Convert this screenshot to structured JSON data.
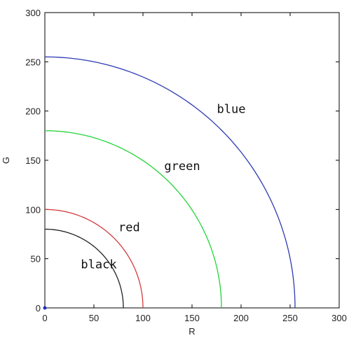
{
  "chart_data": {
    "type": "line",
    "title": "",
    "xlabel": "R",
    "ylabel": "G",
    "xlim": [
      0,
      300
    ],
    "ylim": [
      0,
      300
    ],
    "xticks": [
      "0",
      "50",
      "100",
      "150",
      "200",
      "250",
      "300"
    ],
    "yticks": [
      "0",
      "50",
      "100",
      "150",
      "200",
      "250",
      "300"
    ],
    "grid": false,
    "legend": "none",
    "series": [
      {
        "name": "black",
        "radius": 80,
        "color": "#222222",
        "label_at": [
          55,
          40
        ]
      },
      {
        "name": "red",
        "radius": 100,
        "color": "#d23c3c",
        "label_at": [
          86,
          78
        ]
      },
      {
        "name": "green",
        "radius": 180,
        "color": "#22d43a",
        "label_at": [
          140,
          140
        ]
      },
      {
        "name": "blue",
        "radius": 255,
        "color": "#2e3ab4",
        "label_at": [
          190,
          198
        ]
      }
    ],
    "origin_point": {
      "x": 0,
      "y": 0,
      "color": "#1f2dbf"
    }
  }
}
